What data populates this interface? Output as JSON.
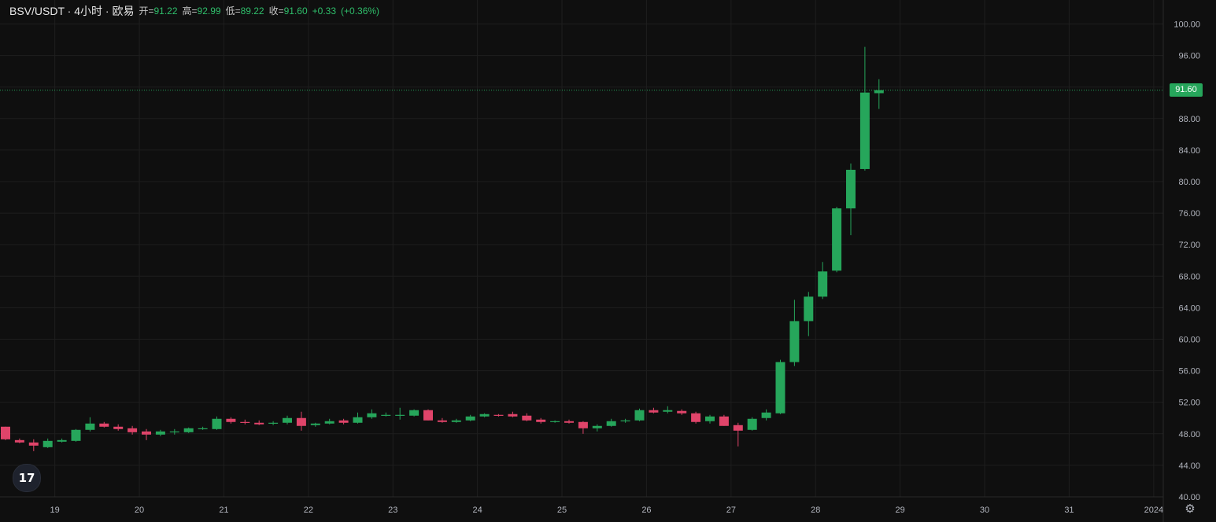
{
  "header": {
    "symbol": "BSV/USDT",
    "interval": "4小时",
    "exchange": "欧易",
    "separator": "·",
    "open_label": "开=",
    "open": "91.22",
    "high_label": "高=",
    "high": "92.99",
    "low_label": "低=",
    "low": "89.22",
    "close_label": "收=",
    "close": "91.60",
    "change": "+0.33",
    "change_pct": "(+0.36%)"
  },
  "last_price": "91.60",
  "colors": {
    "up": "#26a65b",
    "down": "#e0446a",
    "background": "#0f0f0f",
    "grid": "#1f1f1f",
    "text": "#b2b5be"
  },
  "icons": {
    "logo": "tradingview-logo-icon",
    "settings": "gear-icon"
  },
  "logo_text": "17",
  "settings_glyph": "⚙",
  "chart_data": {
    "type": "candlestick",
    "ylim": [
      40,
      100
    ],
    "y_ticks": [
      "40.00",
      "44.00",
      "48.00",
      "52.00",
      "56.00",
      "60.00",
      "64.00",
      "68.00",
      "72.00",
      "76.00",
      "80.00",
      "84.00",
      "88.00",
      "92.00",
      "96.00",
      "100.00"
    ],
    "x_ticks": [
      {
        "label": "19",
        "bar": 3.5
      },
      {
        "label": "20",
        "bar": 9.5
      },
      {
        "label": "21",
        "bar": 15.5
      },
      {
        "label": "22",
        "bar": 21.5
      },
      {
        "label": "23",
        "bar": 27.5
      },
      {
        "label": "24",
        "bar": 33.5
      },
      {
        "label": "25",
        "bar": 39.5
      },
      {
        "label": "26",
        "bar": 45.5
      },
      {
        "label": "27",
        "bar": 51.5
      },
      {
        "label": "28",
        "bar": 57.5
      },
      {
        "label": "29",
        "bar": 63.5
      },
      {
        "label": "30",
        "bar": 69.5
      },
      {
        "label": "31",
        "bar": 75.5
      },
      {
        "label": "2024",
        "bar": 81.5
      }
    ],
    "ohlc": [
      [
        48.9,
        48.9,
        47.2,
        47.3
      ],
      [
        47.2,
        47.4,
        46.8,
        46.9
      ],
      [
        46.9,
        47.3,
        45.8,
        46.5
      ],
      [
        46.3,
        47.4,
        46.2,
        47.1
      ],
      [
        47.0,
        47.4,
        46.9,
        47.2
      ],
      [
        47.1,
        48.6,
        47.0,
        48.5
      ],
      [
        48.5,
        50.1,
        48.3,
        49.3
      ],
      [
        49.3,
        49.5,
        48.8,
        48.9
      ],
      [
        48.9,
        49.2,
        48.4,
        48.6
      ],
      [
        48.7,
        49.0,
        47.9,
        48.2
      ],
      [
        48.3,
        48.6,
        47.2,
        47.9
      ],
      [
        47.9,
        48.5,
        47.7,
        48.3
      ],
      [
        48.2,
        48.6,
        47.9,
        48.3
      ],
      [
        48.2,
        48.8,
        48.1,
        48.7
      ],
      [
        48.6,
        48.9,
        48.5,
        48.7
      ],
      [
        48.6,
        50.2,
        48.5,
        49.9
      ],
      [
        49.9,
        50.1,
        49.3,
        49.5
      ],
      [
        49.5,
        49.8,
        49.2,
        49.4
      ],
      [
        49.4,
        49.7,
        49.1,
        49.2
      ],
      [
        49.3,
        49.6,
        49.1,
        49.4
      ],
      [
        49.4,
        50.3,
        49.2,
        50.0
      ],
      [
        50.0,
        50.8,
        48.4,
        49.0
      ],
      [
        49.1,
        49.4,
        48.9,
        49.3
      ],
      [
        49.3,
        49.9,
        49.2,
        49.6
      ],
      [
        49.7,
        49.9,
        49.2,
        49.4
      ],
      [
        49.4,
        50.7,
        49.3,
        50.1
      ],
      [
        50.1,
        51.1,
        49.9,
        50.6
      ],
      [
        50.4,
        50.7,
        50.2,
        50.4
      ],
      [
        50.4,
        51.3,
        49.8,
        50.4
      ],
      [
        50.3,
        51.1,
        50.2,
        51.0
      ],
      [
        51.0,
        51.1,
        49.7,
        49.7
      ],
      [
        49.7,
        50.0,
        49.4,
        49.5
      ],
      [
        49.5,
        49.9,
        49.4,
        49.7
      ],
      [
        49.7,
        50.4,
        49.6,
        50.2
      ],
      [
        50.2,
        50.6,
        50.1,
        50.5
      ],
      [
        50.4,
        50.5,
        50.2,
        50.3
      ],
      [
        50.5,
        50.8,
        50.1,
        50.2
      ],
      [
        50.3,
        50.6,
        49.6,
        49.7
      ],
      [
        49.8,
        50.0,
        49.3,
        49.5
      ],
      [
        49.5,
        49.7,
        49.4,
        49.6
      ],
      [
        49.6,
        49.8,
        49.3,
        49.4
      ],
      [
        49.5,
        49.6,
        48.0,
        48.7
      ],
      [
        48.7,
        49.2,
        48.3,
        49.0
      ],
      [
        49.0,
        49.9,
        48.9,
        49.6
      ],
      [
        49.6,
        49.9,
        49.4,
        49.7
      ],
      [
        49.7,
        51.2,
        49.6,
        51.0
      ],
      [
        51.0,
        51.3,
        50.6,
        50.7
      ],
      [
        50.8,
        51.5,
        50.6,
        51.0
      ],
      [
        50.9,
        51.1,
        50.4,
        50.6
      ],
      [
        50.6,
        50.8,
        49.3,
        49.5
      ],
      [
        49.6,
        50.4,
        49.3,
        50.2
      ],
      [
        50.2,
        50.4,
        49.0,
        49.0
      ],
      [
        49.1,
        49.4,
        46.4,
        48.4
      ],
      [
        48.5,
        50.1,
        48.4,
        49.9
      ],
      [
        50.0,
        51.1,
        49.7,
        50.7
      ],
      [
        50.6,
        57.4,
        50.5,
        57.1
      ],
      [
        57.1,
        65.0,
        56.6,
        62.3
      ],
      [
        62.3,
        66.0,
        60.4,
        65.4
      ],
      [
        65.4,
        69.8,
        65.1,
        68.6
      ],
      [
        68.7,
        76.8,
        68.5,
        76.6
      ],
      [
        76.6,
        82.3,
        73.2,
        81.5
      ],
      [
        81.6,
        97.1,
        81.4,
        91.3
      ],
      [
        91.22,
        92.99,
        89.22,
        91.6
      ]
    ]
  }
}
